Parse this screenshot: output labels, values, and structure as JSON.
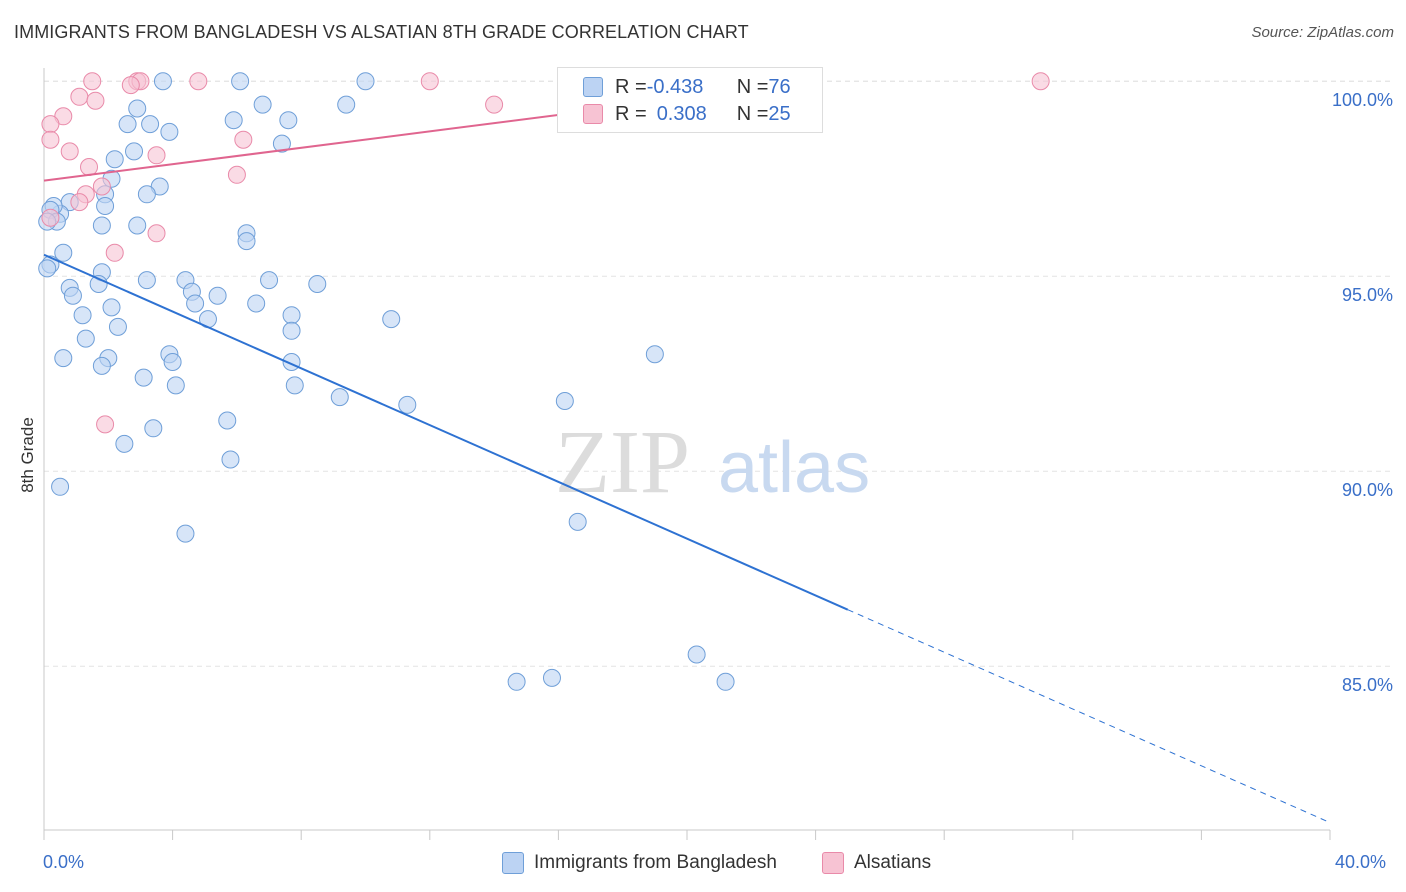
{
  "title": "IMMIGRANTS FROM BANGLADESH VS ALSATIAN 8TH GRADE CORRELATION CHART",
  "source": "Source: ZipAtlas.com",
  "watermark_zip": "ZIP",
  "watermark_atlas": "atlas",
  "legend": {
    "row1": {
      "r_label": "R = ",
      "r_value": "-0.438",
      "n_label": "N = ",
      "n_value": "76"
    },
    "row2": {
      "r_label": "R = ",
      "r_value": "0.308",
      "n_label": "N = ",
      "n_value": "25"
    }
  },
  "bottom_legend": {
    "series1": "Immigrants from Bangladesh",
    "series2": "Alsatians"
  },
  "colors": {
    "blue_fill": "#bcd3f3",
    "blue_stroke": "#6f9fd8",
    "blue_line": "#2e72d2",
    "pink_fill": "#f7c3d3",
    "pink_stroke": "#e98aa9",
    "pink_line": "#e0658f",
    "tick_text": "#3a6fc8",
    "grid": "#e3e3e3"
  },
  "chart_data": {
    "type": "scatter",
    "title": "IMMIGRANTS FROM BANGLADESH VS ALSATIAN 8TH GRADE CORRELATION CHART",
    "xlabel": "",
    "ylabel": "8th Grade",
    "xlim": [
      0,
      40
    ],
    "ylim": [
      80.8,
      100.8
    ],
    "x_tick_labels": [
      "0.0%",
      "40.0%"
    ],
    "y_ticks": [
      85,
      90,
      95,
      100
    ],
    "y_tick_labels": [
      "85.0%",
      "90.0%",
      "95.0%",
      "100.0%"
    ],
    "grid": true,
    "legend_position": "top-center",
    "series": [
      {
        "name": "Immigrants from Bangladesh",
        "R": -0.438,
        "N": 76,
        "points": [
          [
            3.7,
            100.0
          ],
          [
            6.1,
            100.0
          ],
          [
            10.0,
            100.0
          ],
          [
            2.9,
            99.3
          ],
          [
            6.8,
            99.4
          ],
          [
            9.4,
            99.4
          ],
          [
            3.3,
            98.9
          ],
          [
            2.6,
            98.9
          ],
          [
            5.9,
            99.0
          ],
          [
            7.6,
            99.0
          ],
          [
            3.9,
            98.7
          ],
          [
            7.4,
            98.4
          ],
          [
            2.8,
            98.2
          ],
          [
            2.2,
            98.0
          ],
          [
            2.1,
            97.5
          ],
          [
            3.6,
            97.3
          ],
          [
            3.2,
            97.1
          ],
          [
            1.9,
            97.1
          ],
          [
            0.8,
            96.9
          ],
          [
            1.9,
            96.8
          ],
          [
            0.5,
            96.6
          ],
          [
            0.3,
            96.8
          ],
          [
            0.2,
            96.7
          ],
          [
            0.4,
            96.4
          ],
          [
            1.8,
            96.3
          ],
          [
            2.9,
            96.3
          ],
          [
            0.1,
            96.4
          ],
          [
            6.3,
            96.1
          ],
          [
            6.3,
            95.9
          ],
          [
            0.6,
            95.6
          ],
          [
            0.2,
            95.3
          ],
          [
            0.1,
            95.2
          ],
          [
            1.8,
            95.1
          ],
          [
            3.2,
            94.9
          ],
          [
            1.7,
            94.8
          ],
          [
            4.4,
            94.9
          ],
          [
            4.6,
            94.6
          ],
          [
            7.0,
            94.9
          ],
          [
            8.5,
            94.8
          ],
          [
            0.8,
            94.7
          ],
          [
            0.9,
            94.5
          ],
          [
            5.4,
            94.5
          ],
          [
            4.7,
            94.3
          ],
          [
            6.6,
            94.3
          ],
          [
            2.1,
            94.2
          ],
          [
            1.2,
            94.0
          ],
          [
            5.1,
            93.9
          ],
          [
            7.7,
            94.0
          ],
          [
            10.8,
            93.9
          ],
          [
            2.3,
            93.7
          ],
          [
            1.3,
            93.4
          ],
          [
            7.7,
            93.6
          ],
          [
            3.9,
            93.0
          ],
          [
            19.0,
            93.0
          ],
          [
            4.0,
            92.8
          ],
          [
            2.0,
            92.9
          ],
          [
            1.8,
            92.7
          ],
          [
            0.6,
            92.9
          ],
          [
            7.7,
            92.8
          ],
          [
            3.1,
            92.4
          ],
          [
            4.1,
            92.2
          ],
          [
            7.8,
            92.2
          ],
          [
            9.2,
            91.9
          ],
          [
            16.2,
            91.8
          ],
          [
            11.3,
            91.7
          ],
          [
            5.7,
            91.3
          ],
          [
            2.5,
            90.7
          ],
          [
            3.4,
            91.1
          ],
          [
            5.8,
            90.3
          ],
          [
            0.5,
            89.6
          ],
          [
            16.6,
            88.7
          ],
          [
            4.4,
            88.4
          ],
          [
            20.3,
            85.3
          ],
          [
            15.8,
            84.7
          ],
          [
            21.2,
            84.6
          ],
          [
            14.7,
            84.6
          ]
        ]
      },
      {
        "name": "Alsatians",
        "R": 0.308,
        "N": 25,
        "points": [
          [
            1.5,
            100.0
          ],
          [
            2.9,
            100.0
          ],
          [
            3.0,
            100.0
          ],
          [
            4.8,
            100.0
          ],
          [
            12.0,
            100.0
          ],
          [
            31.0,
            100.0
          ],
          [
            2.7,
            99.9
          ],
          [
            1.1,
            99.6
          ],
          [
            1.6,
            99.5
          ],
          [
            14.0,
            99.4
          ],
          [
            0.6,
            99.1
          ],
          [
            0.2,
            98.9
          ],
          [
            6.2,
            98.5
          ],
          [
            0.2,
            98.5
          ],
          [
            0.8,
            98.2
          ],
          [
            3.5,
            98.1
          ],
          [
            1.4,
            97.8
          ],
          [
            6.0,
            97.6
          ],
          [
            1.8,
            97.3
          ],
          [
            1.3,
            97.1
          ],
          [
            1.1,
            96.9
          ],
          [
            0.2,
            96.5
          ],
          [
            3.5,
            96.1
          ],
          [
            2.2,
            95.6
          ],
          [
            1.9,
            91.2
          ]
        ]
      }
    ],
    "trend_lines": [
      {
        "series": "Immigrants from Bangladesh",
        "x": [
          0,
          25
        ],
        "y": [
          95.55,
          86.45
        ],
        "dashed_extension": [
          25,
          40
        ]
      },
      {
        "series": "Alsatians",
        "x": [
          0,
          24.2
        ],
        "y": [
          97.45,
          100.0
        ]
      }
    ]
  }
}
